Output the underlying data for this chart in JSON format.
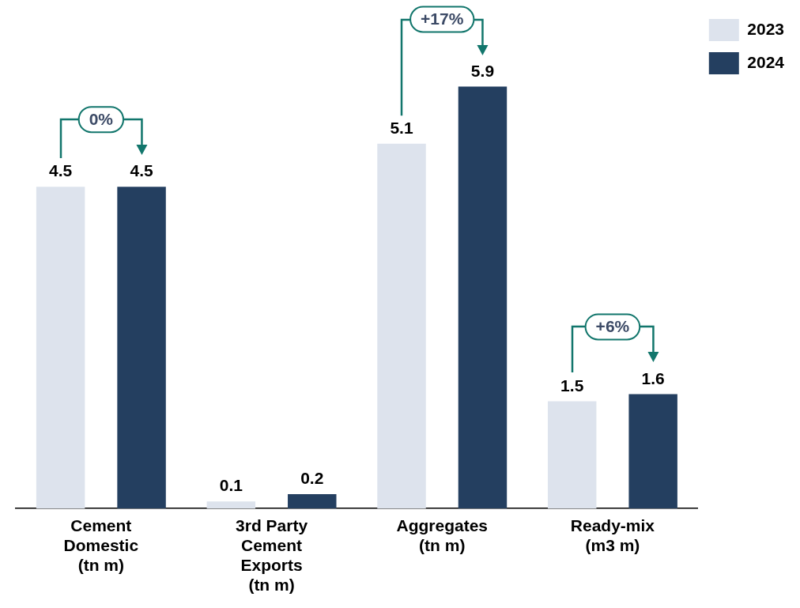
{
  "chart_data": {
    "type": "bar",
    "categories": [
      "Cement Domestic (tn m)",
      "3rd Party Cement Exports (tn m)",
      "Aggregates (tn m)",
      "Ready-mix (m3 m)"
    ],
    "series": [
      {
        "name": "2023",
        "color": "#dde3ed",
        "values": [
          4.5,
          0.1,
          5.1,
          1.5
        ]
      },
      {
        "name": "2024",
        "color": "#243f60",
        "values": [
          4.5,
          0.2,
          5.9,
          1.6
        ]
      }
    ],
    "tick_labels": "x",
    "grid": false,
    "legend": "top right",
    "data_labels": true,
    "annotations": [
      "0%",
      "+17%",
      "+6%"
    ]
  }
}
